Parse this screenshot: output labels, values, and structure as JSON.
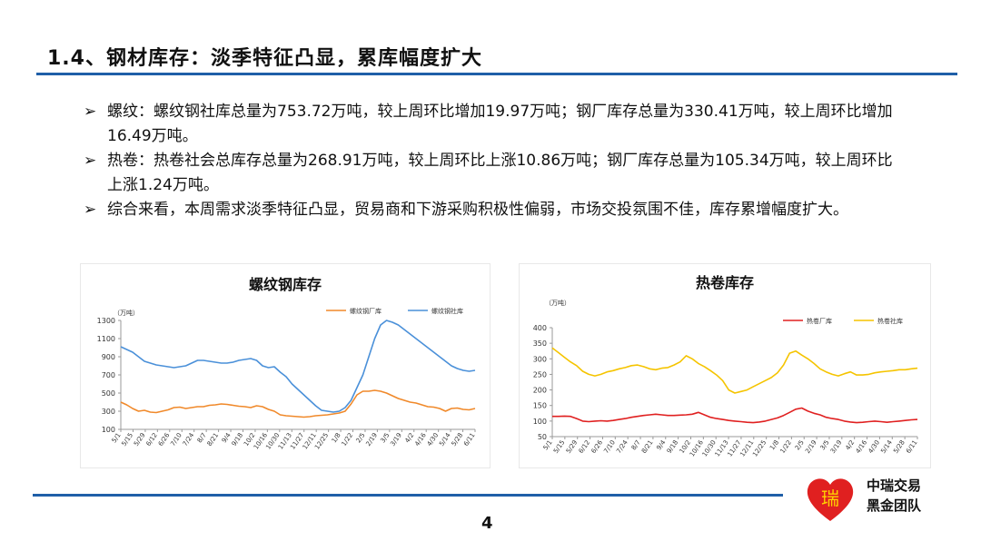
{
  "slide": {
    "title": "1.4、钢材库存：淡季特征凸显，累库幅度扩大",
    "page_number": "4",
    "bullets": [
      "螺纹：螺纹钢社库总量为753.72万吨，较上周环比增加19.97万吨；钢厂库存总量为330.41万吨，较上周环比增加16.49万吨。",
      "热卷：热卷社会总库存总量为268.91万吨，较上周环比上涨10.86万吨；钢厂库存总量为105.34万吨，较上周环比上涨1.24万吨。",
      "综合来看，本周需求淡季特征凸显，贸易商和下游采购积极性偏弱，市场交投氛围不佳，库存累增幅度扩大。"
    ],
    "bullet_icon": "right-arrow-icon",
    "logo": {
      "char": "瑞",
      "line1": "中瑞交易",
      "line2": "黑金团队",
      "color": "#e02020"
    },
    "accent_color": "#1f5fa8"
  },
  "chart_data": [
    {
      "type": "line",
      "title": "螺纹钢库存",
      "unit": "（万吨）",
      "ylim": [
        100,
        1300
      ],
      "yticks": [
        100,
        300,
        500,
        700,
        900,
        1100,
        1300
      ],
      "x_tick_labels": [
        "5/1",
        "5/15",
        "5/29",
        "6/12",
        "6/26",
        "7/10",
        "7/24",
        "8/7",
        "8/21",
        "9/4",
        "9/18",
        "10/2",
        "10/16",
        "10/30",
        "11/13",
        "11/27",
        "12/11",
        "12/25",
        "1/8",
        "1/22",
        "2/5",
        "2/19",
        "3/5",
        "3/19",
        "4/2",
        "4/16",
        "4/30",
        "5/14",
        "5/28",
        "6/11"
      ],
      "legend_position": "top-right",
      "grid": false,
      "series": [
        {
          "name": "螺纹钢厂库",
          "color": "#f0892a",
          "values": [
            400,
            370,
            330,
            300,
            310,
            290,
            285,
            300,
            315,
            340,
            345,
            330,
            340,
            350,
            350,
            365,
            370,
            380,
            375,
            365,
            355,
            350,
            340,
            360,
            350,
            320,
            300,
            260,
            250,
            245,
            240,
            235,
            240,
            250,
            255,
            260,
            270,
            280,
            300,
            380,
            480,
            520,
            520,
            530,
            520,
            500,
            470,
            440,
            420,
            400,
            390,
            370,
            350,
            345,
            330,
            300,
            330,
            335,
            320,
            315,
            330
          ]
        },
        {
          "name": "螺纹钢社库",
          "color": "#4a90d9",
          "values": [
            1010,
            980,
            950,
            900,
            850,
            830,
            810,
            800,
            790,
            780,
            790,
            800,
            830,
            860,
            860,
            850,
            840,
            830,
            830,
            840,
            860,
            870,
            880,
            860,
            800,
            780,
            790,
            730,
            680,
            600,
            540,
            480,
            420,
            360,
            310,
            300,
            290,
            300,
            340,
            420,
            560,
            700,
            900,
            1100,
            1250,
            1300,
            1280,
            1250,
            1200,
            1150,
            1100,
            1050,
            1000,
            950,
            900,
            850,
            800,
            770,
            750,
            740,
            750
          ]
        }
      ]
    },
    {
      "type": "line",
      "title": "热卷库存",
      "unit": "（万吨）",
      "ylim": [
        50,
        400
      ],
      "yticks": [
        50,
        100,
        150,
        200,
        250,
        300,
        350,
        400
      ],
      "x_tick_labels": [
        "5/1",
        "5/15",
        "5/29",
        "6/12",
        "6/26",
        "7/10",
        "7/24",
        "8/7",
        "8/21",
        "9/4",
        "9/18",
        "10/2",
        "10/16",
        "10/30",
        "11/13",
        "11/27",
        "12/11",
        "12/25",
        "1/8",
        "1/22",
        "2/5",
        "2/19",
        "3/5",
        "3/19",
        "4/2",
        "4/16",
        "4/30",
        "5/14",
        "5/28",
        "6/11"
      ],
      "legend_position": "top-right",
      "grid": false,
      "series": [
        {
          "name": "热卷厂库",
          "color": "#e02020",
          "values": [
            115,
            115,
            116,
            115,
            108,
            100,
            98,
            100,
            101,
            100,
            102,
            105,
            108,
            112,
            115,
            118,
            120,
            122,
            120,
            118,
            118,
            119,
            120,
            122,
            128,
            120,
            112,
            108,
            105,
            102,
            100,
            98,
            96,
            95,
            97,
            100,
            105,
            110,
            118,
            128,
            138,
            142,
            132,
            125,
            120,
            112,
            108,
            105,
            100,
            97,
            95,
            96,
            98,
            100,
            98,
            96,
            98,
            100,
            102,
            104,
            105
          ]
        },
        {
          "name": "热卷社库",
          "color": "#f5c400",
          "values": [
            335,
            320,
            305,
            290,
            278,
            260,
            250,
            245,
            250,
            258,
            262,
            268,
            272,
            278,
            280,
            275,
            268,
            265,
            270,
            272,
            280,
            290,
            310,
            300,
            285,
            275,
            262,
            248,
            230,
            200,
            190,
            195,
            200,
            210,
            220,
            230,
            240,
            255,
            280,
            318,
            325,
            312,
            300,
            285,
            268,
            258,
            250,
            245,
            252,
            258,
            248,
            248,
            250,
            255,
            258,
            260,
            262,
            265,
            265,
            268,
            270
          ]
        }
      ]
    }
  ]
}
